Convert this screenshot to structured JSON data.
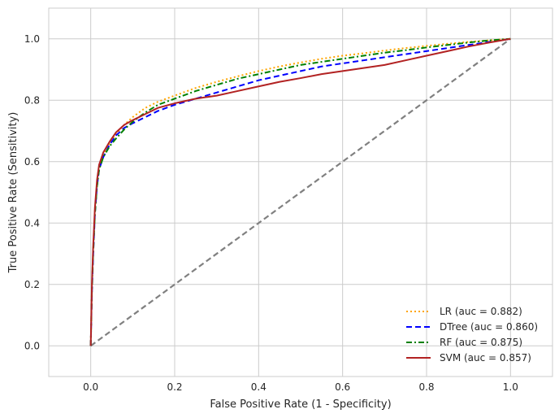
{
  "chart_data": {
    "type": "line",
    "title": "",
    "xlabel": "False Positive Rate (1 - Specificity)",
    "ylabel": "True Positive Rate (Sensitivity)",
    "xlim": [
      -0.1,
      1.1
    ],
    "ylim": [
      -0.1,
      1.1
    ],
    "xticks": [
      "0.0",
      "0.2",
      "0.4",
      "0.6",
      "0.8",
      "1.0"
    ],
    "yticks": [
      "0.0",
      "0.2",
      "0.4",
      "0.6",
      "0.8",
      "1.0"
    ],
    "grid": true,
    "legend_position": "lower-right",
    "reference_line": {
      "x": [
        0,
        1
      ],
      "y": [
        0,
        1
      ],
      "color": "#808080",
      "dash": "dashed"
    },
    "series": [
      {
        "name": "LR (auc = 0.882)",
        "color": "#FFA500",
        "dash": "dotted",
        "x": [
          0,
          0.003,
          0.006,
          0.01,
          0.015,
          0.02,
          0.03,
          0.045,
          0.06,
          0.08,
          0.1,
          0.13,
          0.16,
          0.2,
          0.25,
          0.3,
          0.35,
          0.4,
          0.45,
          0.5,
          0.55,
          0.6,
          0.65,
          0.7,
          0.75,
          0.8,
          0.85,
          0.9,
          0.95,
          1.0
        ],
        "y": [
          0,
          0.2,
          0.32,
          0.44,
          0.53,
          0.58,
          0.62,
          0.66,
          0.69,
          0.72,
          0.745,
          0.775,
          0.795,
          0.815,
          0.84,
          0.86,
          0.878,
          0.895,
          0.91,
          0.923,
          0.935,
          0.945,
          0.953,
          0.962,
          0.97,
          0.977,
          0.984,
          0.99,
          0.995,
          1.0
        ]
      },
      {
        "name": "DTree (auc = 0.860)",
        "color": "#0000FF",
        "dash": "dashed",
        "x": [
          0,
          0.003,
          0.006,
          0.01,
          0.015,
          0.02,
          0.03,
          0.045,
          0.06,
          0.08,
          0.1,
          0.13,
          0.16,
          0.2,
          0.25,
          0.3,
          0.35,
          0.4,
          0.45,
          0.5,
          0.55,
          0.6,
          0.65,
          0.7,
          0.75,
          0.8,
          0.85,
          0.9,
          0.95,
          1.0
        ],
        "y": [
          0,
          0.18,
          0.3,
          0.43,
          0.52,
          0.575,
          0.615,
          0.655,
          0.685,
          0.71,
          0.725,
          0.745,
          0.765,
          0.785,
          0.805,
          0.825,
          0.845,
          0.865,
          0.88,
          0.895,
          0.91,
          0.92,
          0.93,
          0.94,
          0.95,
          0.96,
          0.97,
          0.98,
          0.99,
          1.0
        ]
      },
      {
        "name": "RF (auc = 0.875)",
        "color": "#008000",
        "dash": "dashdot",
        "x": [
          0,
          0.003,
          0.006,
          0.01,
          0.015,
          0.02,
          0.03,
          0.045,
          0.06,
          0.08,
          0.1,
          0.13,
          0.16,
          0.2,
          0.25,
          0.3,
          0.35,
          0.4,
          0.45,
          0.5,
          0.55,
          0.6,
          0.65,
          0.7,
          0.75,
          0.8,
          0.85,
          0.9,
          0.95,
          1.0
        ],
        "y": [
          0,
          0.19,
          0.31,
          0.43,
          0.52,
          0.575,
          0.615,
          0.65,
          0.675,
          0.705,
          0.73,
          0.76,
          0.785,
          0.805,
          0.83,
          0.85,
          0.87,
          0.885,
          0.9,
          0.915,
          0.925,
          0.935,
          0.945,
          0.955,
          0.963,
          0.972,
          0.98,
          0.988,
          0.995,
          1.0
        ]
      },
      {
        "name": "SVM (auc = 0.857)",
        "color": "#B22222",
        "dash": "solid",
        "x": [
          0,
          0.003,
          0.006,
          0.01,
          0.015,
          0.02,
          0.03,
          0.045,
          0.06,
          0.08,
          0.1,
          0.13,
          0.16,
          0.2,
          0.25,
          0.3,
          0.35,
          0.4,
          0.45,
          0.5,
          0.55,
          0.6,
          0.65,
          0.7,
          0.75,
          0.8,
          0.85,
          0.9,
          0.95,
          1.0
        ],
        "y": [
          0,
          0.21,
          0.33,
          0.45,
          0.54,
          0.59,
          0.63,
          0.665,
          0.695,
          0.72,
          0.735,
          0.755,
          0.775,
          0.79,
          0.805,
          0.815,
          0.83,
          0.845,
          0.86,
          0.872,
          0.885,
          0.895,
          0.905,
          0.915,
          0.93,
          0.945,
          0.96,
          0.975,
          0.988,
          1.0
        ]
      }
    ]
  }
}
